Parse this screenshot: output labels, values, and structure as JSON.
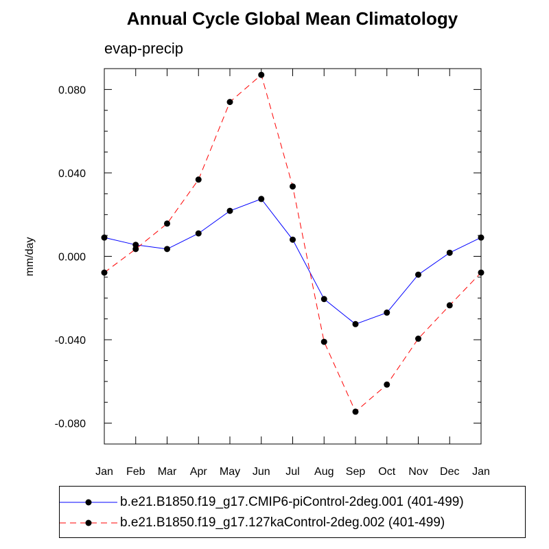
{
  "chart_data": {
    "type": "line",
    "title": "Annual Cycle Global Mean Climatology",
    "subtitle": "evap-precip",
    "xlabel": "",
    "ylabel": "mm/day",
    "categories": [
      "Jan",
      "Feb",
      "Mar",
      "Apr",
      "May",
      "Jun",
      "Jul",
      "Aug",
      "Sep",
      "Oct",
      "Nov",
      "Dec",
      "Jan"
    ],
    "ylim": [
      -0.09,
      0.09
    ],
    "yticks": [
      {
        "value": 0.08,
        "label": "0.080"
      },
      {
        "value": 0.04,
        "label": "0.040"
      },
      {
        "value": 0.0,
        "label": "0.000"
      },
      {
        "value": -0.04,
        "label": "-0.040"
      },
      {
        "value": -0.08,
        "label": "-0.080"
      }
    ],
    "series": [
      {
        "name": "b.e21.B1850.f19_g17.CMIP6-piControl-2deg.001 (401-499)",
        "color": "#0000ff",
        "dash": "solid",
        "values": [
          0.009,
          0.0055,
          0.0035,
          0.011,
          0.0218,
          0.0275,
          0.008,
          -0.0205,
          -0.0325,
          -0.027,
          -0.0088,
          0.0017,
          0.009
        ]
      },
      {
        "name": "b.e21.B1850.f19_g17.127kaControl-2deg.002 (401-499)",
        "color": "#ff0000",
        "dash": "dashed",
        "values": [
          -0.0078,
          0.0035,
          0.0157,
          0.0368,
          0.074,
          0.087,
          0.0335,
          -0.041,
          -0.0745,
          -0.0615,
          -0.0395,
          -0.0235,
          -0.0078
        ]
      }
    ],
    "marker_color": "#000000",
    "legend_position": "bottom"
  }
}
